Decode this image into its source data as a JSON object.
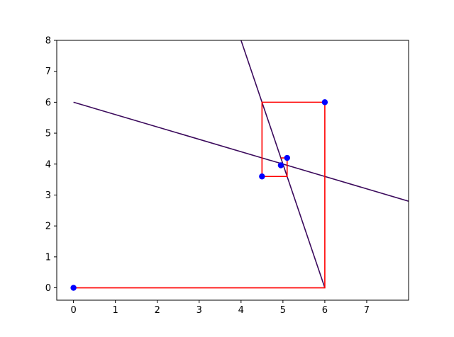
{
  "chart_data": {
    "type": "line",
    "title": "",
    "xlabel": "",
    "ylabel": "",
    "xlim": [
      -0.4,
      8.0
    ],
    "ylim": [
      -0.4,
      8.0
    ],
    "xticks": [
      0,
      1,
      2,
      3,
      4,
      5,
      6,
      7
    ],
    "yticks": [
      0,
      1,
      2,
      3,
      4,
      5,
      6,
      7,
      8
    ],
    "grid": false,
    "lines": [
      {
        "x": [
          0,
          8
        ],
        "y": [
          6,
          2.8
        ],
        "color": "#3b0a5c"
      },
      {
        "x": [
          6,
          4
        ],
        "y": [
          0,
          8
        ],
        "color": "#3b0a5c"
      }
    ],
    "path": {
      "x": [
        0,
        6,
        6,
        4.5,
        4.5,
        5.1,
        5.1,
        4.95
      ],
      "y": [
        0,
        0,
        6,
        6,
        3.6,
        3.6,
        4.2,
        4.2
      ],
      "color": "#ff0000"
    },
    "points": {
      "x": [
        0,
        6,
        4.5,
        5.1,
        4.95
      ],
      "y": [
        0,
        6,
        3.6,
        4.2,
        3.96
      ],
      "color": "#0000ff"
    }
  }
}
